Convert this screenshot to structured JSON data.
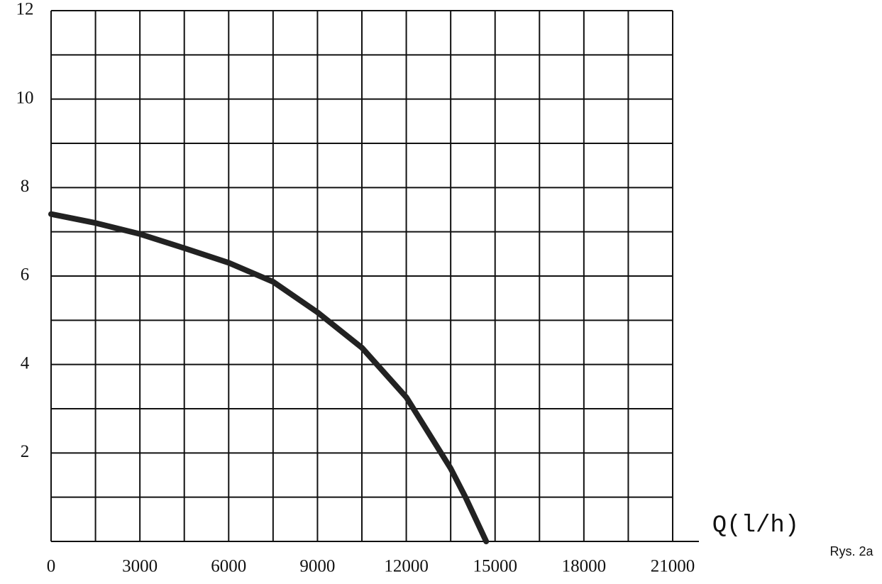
{
  "chart_data": {
    "type": "line",
    "x_label": "Q(l/h)",
    "note": "Rys. 2a",
    "x": [
      0,
      1500,
      3000,
      4500,
      6000,
      7500,
      9000,
      10500,
      12000,
      13500,
      14000,
      14700
    ],
    "series": [
      {
        "color": "#222222",
        "values": [
          7.4,
          7.2,
          6.95,
          6.63,
          6.3,
          5.87,
          5.18,
          4.38,
          3.26,
          1.65,
          1.0,
          0
        ]
      }
    ],
    "xlim": [
      0,
      21000
    ],
    "xticks": [
      0,
      3000,
      6000,
      9000,
      12000,
      15000,
      18000,
      21000
    ],
    "x_minor_ticks": [
      1500,
      4500,
      7500,
      10500,
      13500,
      16500,
      19500
    ],
    "ylim": [
      0,
      12
    ],
    "yticks": [
      2,
      4,
      6,
      8,
      10,
      12
    ],
    "y_minor_ticks": [
      1,
      3,
      5,
      7,
      9,
      11
    ],
    "grid": true
  }
}
